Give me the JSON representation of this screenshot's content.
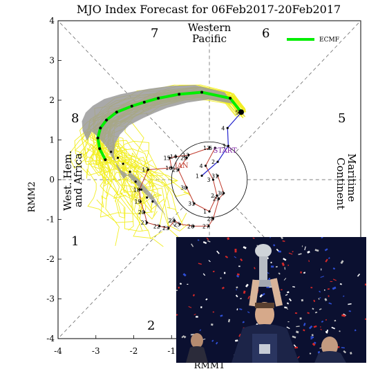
{
  "chart_data": {
    "type": "line",
    "title": "MJO Index Forecast for 06Feb2017-20Feb2017",
    "xlabel": "RMM1",
    "ylabel": "RMM2",
    "xlim": [
      -4,
      4
    ],
    "ylim": [
      -4,
      4
    ],
    "xticks": [
      "-4",
      "-3",
      "-2",
      "-1"
    ],
    "yticks": [
      "-4",
      "-3",
      "-2",
      "-1",
      "0",
      "1",
      "2",
      "3",
      "4"
    ],
    "phases": [
      "1",
      "2",
      "5",
      "6",
      "7",
      "8"
    ],
    "regions": {
      "top": [
        "Western",
        "Pacific"
      ],
      "left": [
        "West. Hem.",
        "and Africa"
      ],
      "right": [
        "Maritime",
        "Continent"
      ]
    },
    "legend": {
      "label": "ECMF",
      "placement": "top-right",
      "color": "#00ee00"
    },
    "colors": {
      "ensemble": "#f2ee22",
      "spread": "#9a9a9a",
      "mean": "#00ee00",
      "jan": "#c0392b",
      "feb": "#2222cc"
    },
    "annotations": {
      "start": "START",
      "month": "JAN"
    },
    "unit_circle_radius": 1,
    "forecast_mean": {
      "x": [
        0.84,
        0.55,
        -0.2,
        -0.8,
        -1.35,
        -1.72,
        -2.05,
        -2.45,
        -2.72,
        -2.88,
        -2.95,
        -2.9,
        -2.75
      ],
      "y": [
        1.7,
        2.05,
        2.2,
        2.15,
        2.05,
        1.95,
        1.85,
        1.7,
        1.5,
        1.3,
        1.05,
        0.78,
        0.5
      ]
    },
    "forecast_days": [
      {
        "x": -2.6,
        "y": 0.7
      },
      {
        "x": -2.42,
        "y": 0.55
      },
      {
        "x": -2.28,
        "y": 0.4
      },
      {
        "x": -2.1,
        "y": 0.2
      },
      {
        "x": -1.95,
        "y": -0.05
      },
      {
        "x": -1.8,
        "y": -0.25
      },
      {
        "x": -1.65,
        "y": -0.45
      },
      {
        "x": -1.5,
        "y": -0.55
      }
    ],
    "observed_feb": {
      "days": [
        "1",
        "2",
        "3",
        "4",
        "5"
      ],
      "x": [
        -0.2,
        0.22,
        0.5,
        0.48,
        0.85
      ],
      "y": [
        0.1,
        0.45,
        0.85,
        1.3,
        1.7
      ]
    },
    "observed_jan": {
      "days": [
        "12",
        "13",
        "14",
        "15",
        "16",
        "17",
        "18",
        "19",
        "20",
        "21",
        "22",
        "23",
        "24",
        "25",
        "26",
        "27",
        "28",
        "29",
        "30",
        "31"
      ],
      "x": [
        0.0,
        -0.55,
        -0.88,
        -1.05,
        -1.0,
        -1.62,
        -1.85,
        -1.82,
        -1.72,
        -1.65,
        -1.32,
        -1.08,
        -0.92,
        -0.78,
        -0.42,
        -0.02,
        0.1,
        0.25,
        0.38,
        0.22
      ],
      "y": [
        0.8,
        0.62,
        0.58,
        0.55,
        0.3,
        0.25,
        -0.25,
        -0.55,
        -0.82,
        -1.08,
        -1.17,
        -1.22,
        -1.03,
        -1.12,
        -1.17,
        -1.17,
        -0.98,
        -0.48,
        -0.34,
        0.1
      ]
    },
    "observed_late": {
      "days": [
        "28",
        "29",
        "30",
        "31",
        "1",
        "2",
        "3",
        "4",
        "5"
      ],
      "x": [
        -0.6,
        -0.82,
        -0.6,
        -0.4,
        0.0,
        0.2,
        0.1,
        -0.1,
        0.15
      ],
      "y": [
        0.55,
        0.25,
        -0.2,
        -0.6,
        -0.8,
        -0.4,
        0.0,
        0.35,
        0.8
      ]
    }
  },
  "photo": {
    "description_colors": [
      "#0b1030",
      "#d62828",
      "#2f4fd6",
      "#ffffff",
      "#c0c0c0"
    ]
  }
}
